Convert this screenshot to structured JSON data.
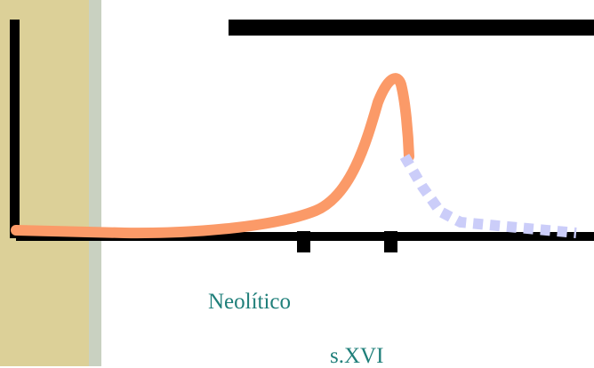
{
  "colors": {
    "side_band": "#dcd098",
    "side_strip": "#c9d1c1",
    "axis": "#000000",
    "solid_curve": "#fb9a68",
    "dotted_curve": "#cbcdf9",
    "label_text": "#1f7f7a"
  },
  "labels": {
    "neolitico": "Neolítico",
    "sxvi": "s.XVI"
  }
}
